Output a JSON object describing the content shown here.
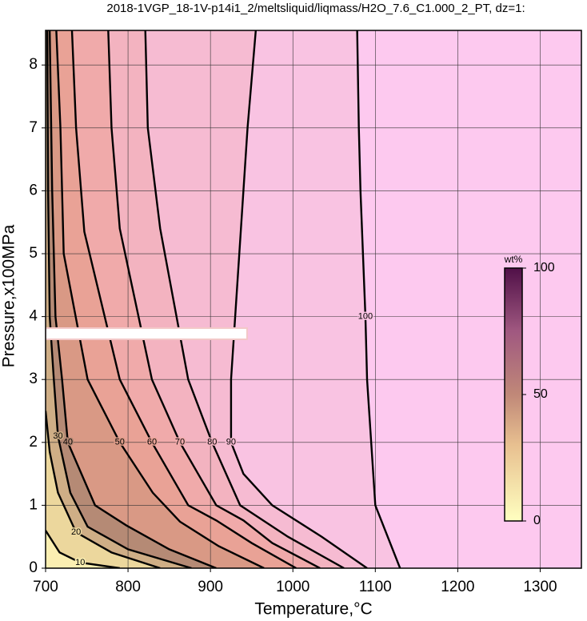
{
  "chart_data": {
    "type": "contour",
    "title": "2018-1VGP_18-1V-p14i1_2/meltsliquid/liqmass/H2O_7.6_C1.000_2_PT, dz=1:",
    "x_label": "Temperature,°C",
    "y_label": "Pressure,x100MPa",
    "xlim": [
      700,
      1350
    ],
    "ylim": [
      0,
      8.55
    ],
    "xticks": [
      700,
      800,
      900,
      1000,
      1100,
      1200,
      1300
    ],
    "yticks": [
      0,
      1,
      2,
      3,
      4,
      5,
      6,
      7,
      8
    ],
    "grid": true,
    "background": "#fdc9ef",
    "contours": [
      {
        "level": 100,
        "color": "#f9c3e2",
        "x": [
          1078,
          1080,
          1082,
          1085,
          1088,
          1090,
          1095,
          1100,
          1130
        ],
        "y": [
          8.55,
          7,
          6,
          5,
          4,
          3,
          2,
          1,
          0
        ]
      },
      {
        "level": 90,
        "color": "#f6bbd2",
        "x": [
          955,
          945,
          935,
          925,
          925,
          940,
          975,
          1035,
          1090
        ],
        "y": [
          8.55,
          7,
          5,
          3,
          2,
          1.5,
          1,
          0.5,
          0
        ]
      },
      {
        "level": 80,
        "color": "#f3b3c0",
        "x": [
          821,
          824,
          839,
          873,
          902,
          936,
          994,
          1062
        ],
        "y": [
          8.55,
          7,
          5.4,
          3,
          2,
          1,
          0.5,
          0
        ]
      },
      {
        "level": 70,
        "color": "#f0aaaa",
        "x": [
          776,
          780,
          790,
          829,
          863,
          907,
          940,
          975,
          1033
        ],
        "y": [
          8.55,
          7,
          5.4,
          3,
          2,
          1,
          0.76,
          0.4,
          0
        ]
      },
      {
        "level": 60,
        "color": "#e9a296",
        "x": [
          732,
          737,
          747,
          790,
          829,
          873,
          907,
          950,
          1004
        ],
        "y": [
          8.55,
          7,
          5.35,
          3,
          2,
          1,
          0.76,
          0.4,
          0
        ]
      },
      {
        "level": 50,
        "color": "#d99985",
        "x": [
          713,
          718,
          722,
          751,
          790,
          830,
          863,
          910,
          965
        ],
        "y": [
          8.55,
          7,
          5,
          3,
          2,
          1.2,
          0.74,
          0.35,
          0
        ]
      },
      {
        "level": 40,
        "color": "#b58a75",
        "x": [
          705,
          708,
          712,
          720,
          727,
          760,
          798,
          850,
          907
        ],
        "y": [
          8.55,
          6,
          4,
          3,
          2,
          1,
          0.68,
          0.3,
          0
        ]
      },
      {
        "level": 30,
        "color": "#cfae86",
        "x": [
          702,
          703,
          705,
          710,
          715,
          730,
          751,
          800,
          877
        ],
        "y": [
          8.55,
          6,
          4,
          3,
          2.1,
          1.2,
          0.66,
          0.3,
          0
        ]
      },
      {
        "level": 20,
        "color": "#ecd79d",
        "x": [
          700,
          705,
          715,
          737,
          780,
          839
        ],
        "y": [
          2.5,
          1.85,
          1.2,
          0.57,
          0.25,
          0
        ]
      },
      {
        "level": 10,
        "color": "#fbefb2",
        "x": [
          700,
          717,
          742,
          790
        ],
        "y": [
          0.6,
          0.25,
          0.09,
          0
        ]
      }
    ],
    "colorbar": {
      "label": "wt%",
      "lim": [
        0,
        100
      ],
      "ticks": [
        0,
        50,
        100
      ]
    }
  }
}
